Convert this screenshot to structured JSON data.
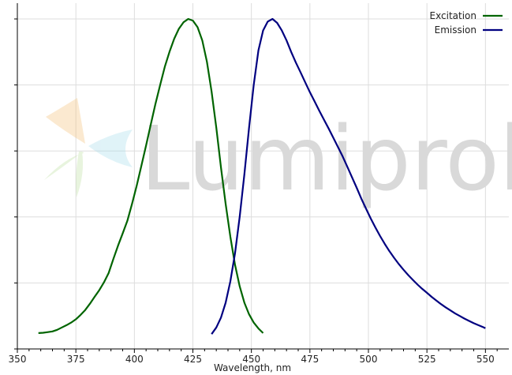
{
  "watermark": {
    "text": "Lumiprobe"
  },
  "chart_data": {
    "type": "line",
    "xlabel": "Wavelength, nm",
    "ylabel": "",
    "xlim": [
      350,
      560
    ],
    "ylim": [
      0,
      1.0
    ],
    "xticks": [
      350,
      375,
      400,
      425,
      450,
      475,
      500,
      525,
      550
    ],
    "ytick_labels_shown": false,
    "grid": true,
    "legend": "top-right",
    "series": [
      {
        "name": "Excitation",
        "color": "#006400",
        "points": [
          [
            359,
            0.048
          ],
          [
            361,
            0.049
          ],
          [
            363,
            0.051
          ],
          [
            365,
            0.053
          ],
          [
            367,
            0.058
          ],
          [
            369,
            0.065
          ],
          [
            371,
            0.072
          ],
          [
            373,
            0.08
          ],
          [
            375,
            0.09
          ],
          [
            377,
            0.103
          ],
          [
            379,
            0.118
          ],
          [
            381,
            0.137
          ],
          [
            383,
            0.158
          ],
          [
            385,
            0.178
          ],
          [
            387,
            0.202
          ],
          [
            389,
            0.23
          ],
          [
            391,
            0.272
          ],
          [
            393,
            0.313
          ],
          [
            395,
            0.35
          ],
          [
            397,
            0.388
          ],
          [
            399,
            0.44
          ],
          [
            401,
            0.495
          ],
          [
            403,
            0.555
          ],
          [
            405,
            0.617
          ],
          [
            407,
            0.68
          ],
          [
            409,
            0.742
          ],
          [
            411,
            0.8
          ],
          [
            413,
            0.855
          ],
          [
            415,
            0.9
          ],
          [
            417,
            0.94
          ],
          [
            419,
            0.97
          ],
          [
            421,
            0.99
          ],
          [
            423,
            1.0
          ],
          [
            425,
            0.995
          ],
          [
            427,
            0.975
          ],
          [
            429,
            0.935
          ],
          [
            431,
            0.87
          ],
          [
            433,
            0.78
          ],
          [
            435,
            0.67
          ],
          [
            437,
            0.55
          ],
          [
            439,
            0.44
          ],
          [
            441,
            0.34
          ],
          [
            443,
            0.255
          ],
          [
            445,
            0.19
          ],
          [
            447,
            0.14
          ],
          [
            449,
            0.105
          ],
          [
            451,
            0.08
          ],
          [
            453,
            0.062
          ],
          [
            455,
            0.048
          ]
        ]
      },
      {
        "name": "Emission",
        "color": "#000080",
        "points": [
          [
            433,
            0.045
          ],
          [
            435,
            0.065
          ],
          [
            437,
            0.095
          ],
          [
            439,
            0.14
          ],
          [
            441,
            0.205
          ],
          [
            443,
            0.29
          ],
          [
            445,
            0.4
          ],
          [
            447,
            0.53
          ],
          [
            449,
            0.67
          ],
          [
            451,
            0.8
          ],
          [
            453,
            0.905
          ],
          [
            455,
            0.965
          ],
          [
            457,
            0.992
          ],
          [
            459,
            1.0
          ],
          [
            461,
            0.988
          ],
          [
            463,
            0.965
          ],
          [
            465,
            0.935
          ],
          [
            467,
            0.9
          ],
          [
            469,
            0.868
          ],
          [
            471,
            0.838
          ],
          [
            473,
            0.808
          ],
          [
            475,
            0.778
          ],
          [
            477,
            0.75
          ],
          [
            479,
            0.722
          ],
          [
            481,
            0.695
          ],
          [
            483,
            0.668
          ],
          [
            485,
            0.64
          ],
          [
            487,
            0.612
          ],
          [
            489,
            0.583
          ],
          [
            491,
            0.552
          ],
          [
            493,
            0.52
          ],
          [
            495,
            0.488
          ],
          [
            497,
            0.455
          ],
          [
            499,
            0.425
          ],
          [
            501,
            0.395
          ],
          [
            503,
            0.368
          ],
          [
            505,
            0.342
          ],
          [
            507,
            0.318
          ],
          [
            509,
            0.296
          ],
          [
            511,
            0.276
          ],
          [
            513,
            0.257
          ],
          [
            515,
            0.24
          ],
          [
            517,
            0.224
          ],
          [
            519,
            0.209
          ],
          [
            521,
            0.195
          ],
          [
            523,
            0.182
          ],
          [
            525,
            0.17
          ],
          [
            527,
            0.158
          ],
          [
            529,
            0.147
          ],
          [
            531,
            0.136
          ],
          [
            533,
            0.126
          ],
          [
            535,
            0.117
          ],
          [
            537,
            0.108
          ],
          [
            539,
            0.1
          ],
          [
            541,
            0.092
          ],
          [
            543,
            0.085
          ],
          [
            545,
            0.078
          ],
          [
            547,
            0.072
          ],
          [
            549,
            0.066
          ],
          [
            550,
            0.063
          ]
        ]
      }
    ]
  }
}
